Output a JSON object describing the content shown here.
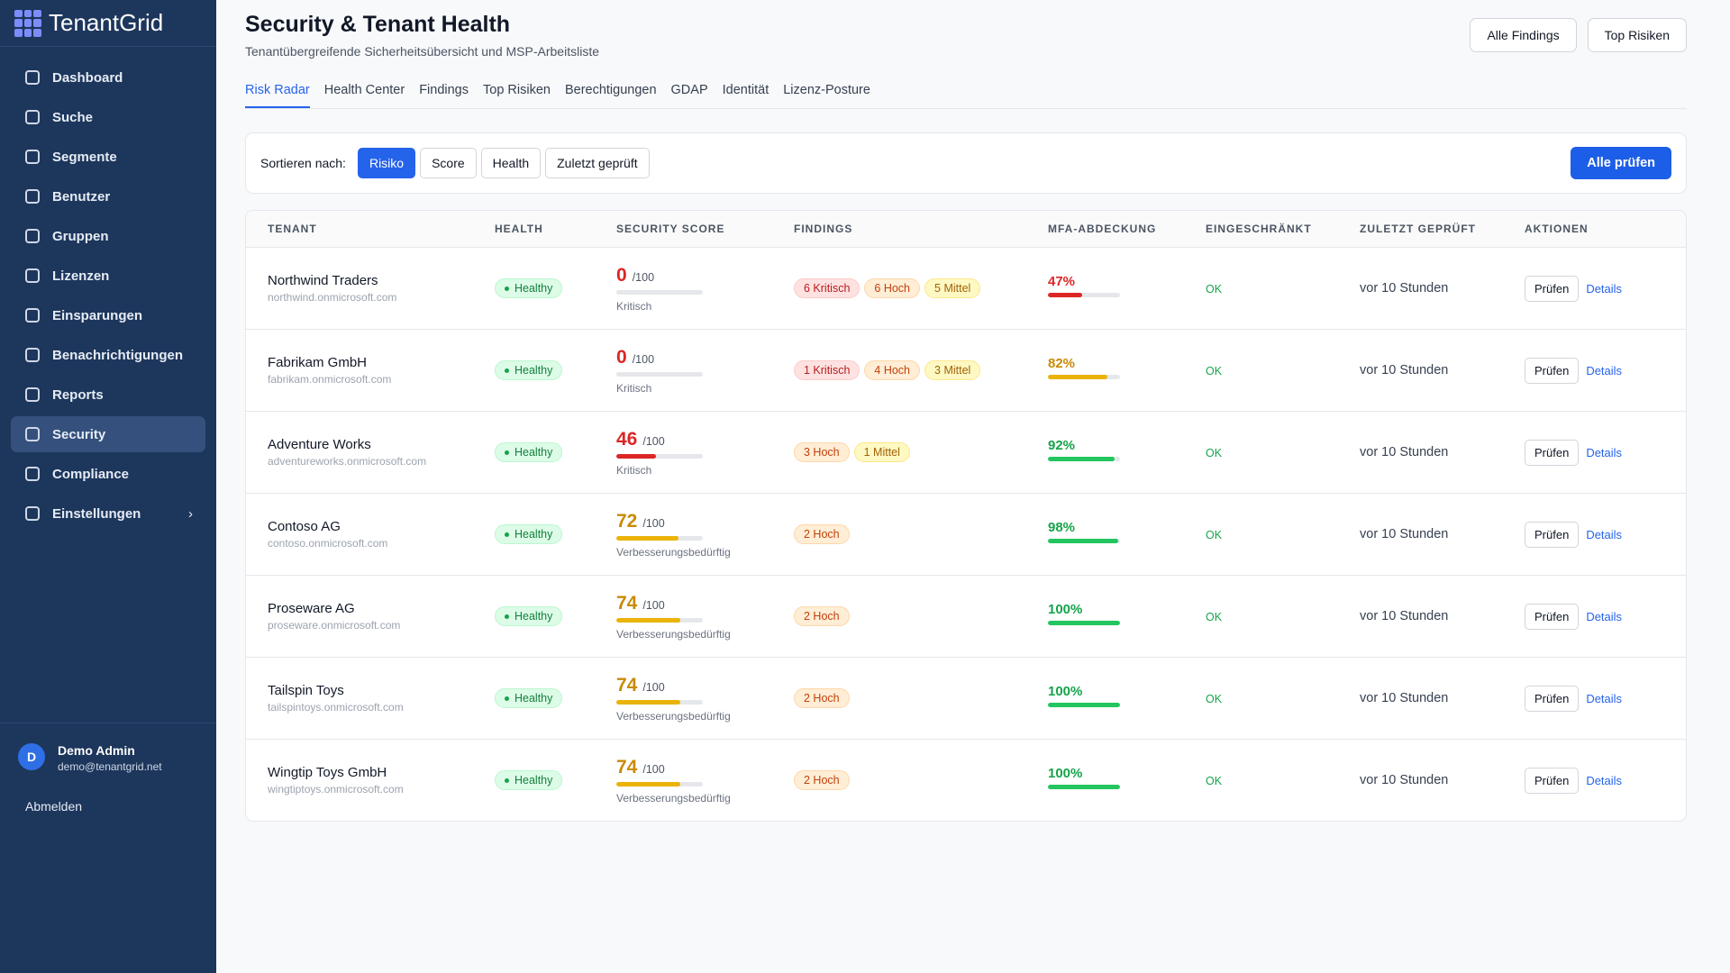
{
  "brand": "TenantGrid",
  "nav": {
    "items": [
      "Dashboard",
      "Suche",
      "Segmente",
      "Benutzer",
      "Gruppen",
      "Lizenzen",
      "Einsparungen",
      "Benachrichtigungen",
      "Reports",
      "Security",
      "Compliance",
      "Einstellungen"
    ],
    "active": 9
  },
  "user": {
    "initial": "D",
    "name": "Demo Admin",
    "email": "demo@tenantgrid.net",
    "logout": "Abmelden"
  },
  "header": {
    "title": "Security & Tenant Health",
    "subtitle": "Tenantübergreifende Sicherheitsübersicht und MSP-Arbeitsliste",
    "buttons": [
      "Alle Findings",
      "Top Risiken"
    ]
  },
  "tabs": {
    "items": [
      "Risk Radar",
      "Health Center",
      "Findings",
      "Top Risiken",
      "Berechtigungen",
      "GDAP",
      "Identität",
      "Lizenz-Posture"
    ],
    "active": 0
  },
  "sort": {
    "label": "Sortieren nach:",
    "options": [
      "Risiko",
      "Score",
      "Health",
      "Zuletzt geprüft"
    ],
    "active": 0,
    "action": "Alle prüfen"
  },
  "table": {
    "headers": [
      "TENANT",
      "HEALTH",
      "SECURITY SCORE",
      "FINDINGS",
      "MFA-ABDECKUNG",
      "EINGESCHRÄNKT",
      "ZULETZT GEPRÜFT",
      "AKTIONEN"
    ],
    "rows": [
      {
        "name": "Northwind Traders",
        "domain": "northwind.onmicrosoft.com",
        "health": "Healthy",
        "score": 0,
        "score_suffix": "/100",
        "score_status": "Kritisch",
        "score_tone": "red",
        "findings": [
          {
            "text": "6 Kritisch",
            "tone": "red"
          },
          {
            "text": "6 Hoch",
            "tone": "orange"
          },
          {
            "text": "5 Mittel",
            "tone": "yellow"
          }
        ],
        "mfa": 47,
        "mfa_label": "47%",
        "mfa_tone": "red",
        "restricted": "OK",
        "last_checked": "vor 10 Stunden",
        "check": "Prüfen",
        "details": "Details"
      },
      {
        "name": "Fabrikam GmbH",
        "domain": "fabrikam.onmicrosoft.com",
        "health": "Healthy",
        "score": 0,
        "score_suffix": "/100",
        "score_status": "Kritisch",
        "score_tone": "red",
        "findings": [
          {
            "text": "1 Kritisch",
            "tone": "red"
          },
          {
            "text": "4 Hoch",
            "tone": "orange"
          },
          {
            "text": "3 Mittel",
            "tone": "yellow"
          }
        ],
        "mfa": 82,
        "mfa_label": "82%",
        "mfa_tone": "orange",
        "restricted": "OK",
        "last_checked": "vor 10 Stunden",
        "check": "Prüfen",
        "details": "Details"
      },
      {
        "name": "Adventure Works",
        "domain": "adventureworks.onmicrosoft.com",
        "health": "Healthy",
        "score": 46,
        "score_suffix": "/100",
        "score_status": "Kritisch",
        "score_tone": "red",
        "findings": [
          {
            "text": "3 Hoch",
            "tone": "orange"
          },
          {
            "text": "1 Mittel",
            "tone": "yellow"
          }
        ],
        "mfa": 92,
        "mfa_label": "92%",
        "mfa_tone": "green",
        "restricted": "OK",
        "last_checked": "vor 10 Stunden",
        "check": "Prüfen",
        "details": "Details"
      },
      {
        "name": "Contoso AG",
        "domain": "contoso.onmicrosoft.com",
        "health": "Healthy",
        "score": 72,
        "score_suffix": "/100",
        "score_status": "Verbesserungsbedürftig",
        "score_tone": "amber",
        "findings": [
          {
            "text": "2 Hoch",
            "tone": "orange"
          }
        ],
        "mfa": 98,
        "mfa_label": "98%",
        "mfa_tone": "green",
        "restricted": "OK",
        "last_checked": "vor 10 Stunden",
        "check": "Prüfen",
        "details": "Details"
      },
      {
        "name": "Proseware AG",
        "domain": "proseware.onmicrosoft.com",
        "health": "Healthy",
        "score": 74,
        "score_suffix": "/100",
        "score_status": "Verbesserungsbedürftig",
        "score_tone": "amber",
        "findings": [
          {
            "text": "2 Hoch",
            "tone": "orange"
          }
        ],
        "mfa": 100,
        "mfa_label": "100%",
        "mfa_tone": "green",
        "restricted": "OK",
        "last_checked": "vor 10 Stunden",
        "check": "Prüfen",
        "details": "Details"
      },
      {
        "name": "Tailspin Toys",
        "domain": "tailspintoys.onmicrosoft.com",
        "health": "Healthy",
        "score": 74,
        "score_suffix": "/100",
        "score_status": "Verbesserungsbedürftig",
        "score_tone": "amber",
        "findings": [
          {
            "text": "2 Hoch",
            "tone": "orange"
          }
        ],
        "mfa": 100,
        "mfa_label": "100%",
        "mfa_tone": "green",
        "restricted": "OK",
        "last_checked": "vor 10 Stunden",
        "check": "Prüfen",
        "details": "Details"
      },
      {
        "name": "Wingtip Toys GmbH",
        "domain": "wingtiptoys.onmicrosoft.com",
        "health": "Healthy",
        "score": 74,
        "score_suffix": "/100",
        "score_status": "Verbesserungsbedürftig",
        "score_tone": "amber",
        "findings": [
          {
            "text": "2 Hoch",
            "tone": "orange"
          }
        ],
        "mfa": 100,
        "mfa_label": "100%",
        "mfa_tone": "green",
        "restricted": "OK",
        "last_checked": "vor 10 Stunden",
        "check": "Prüfen",
        "details": "Details"
      }
    ]
  }
}
